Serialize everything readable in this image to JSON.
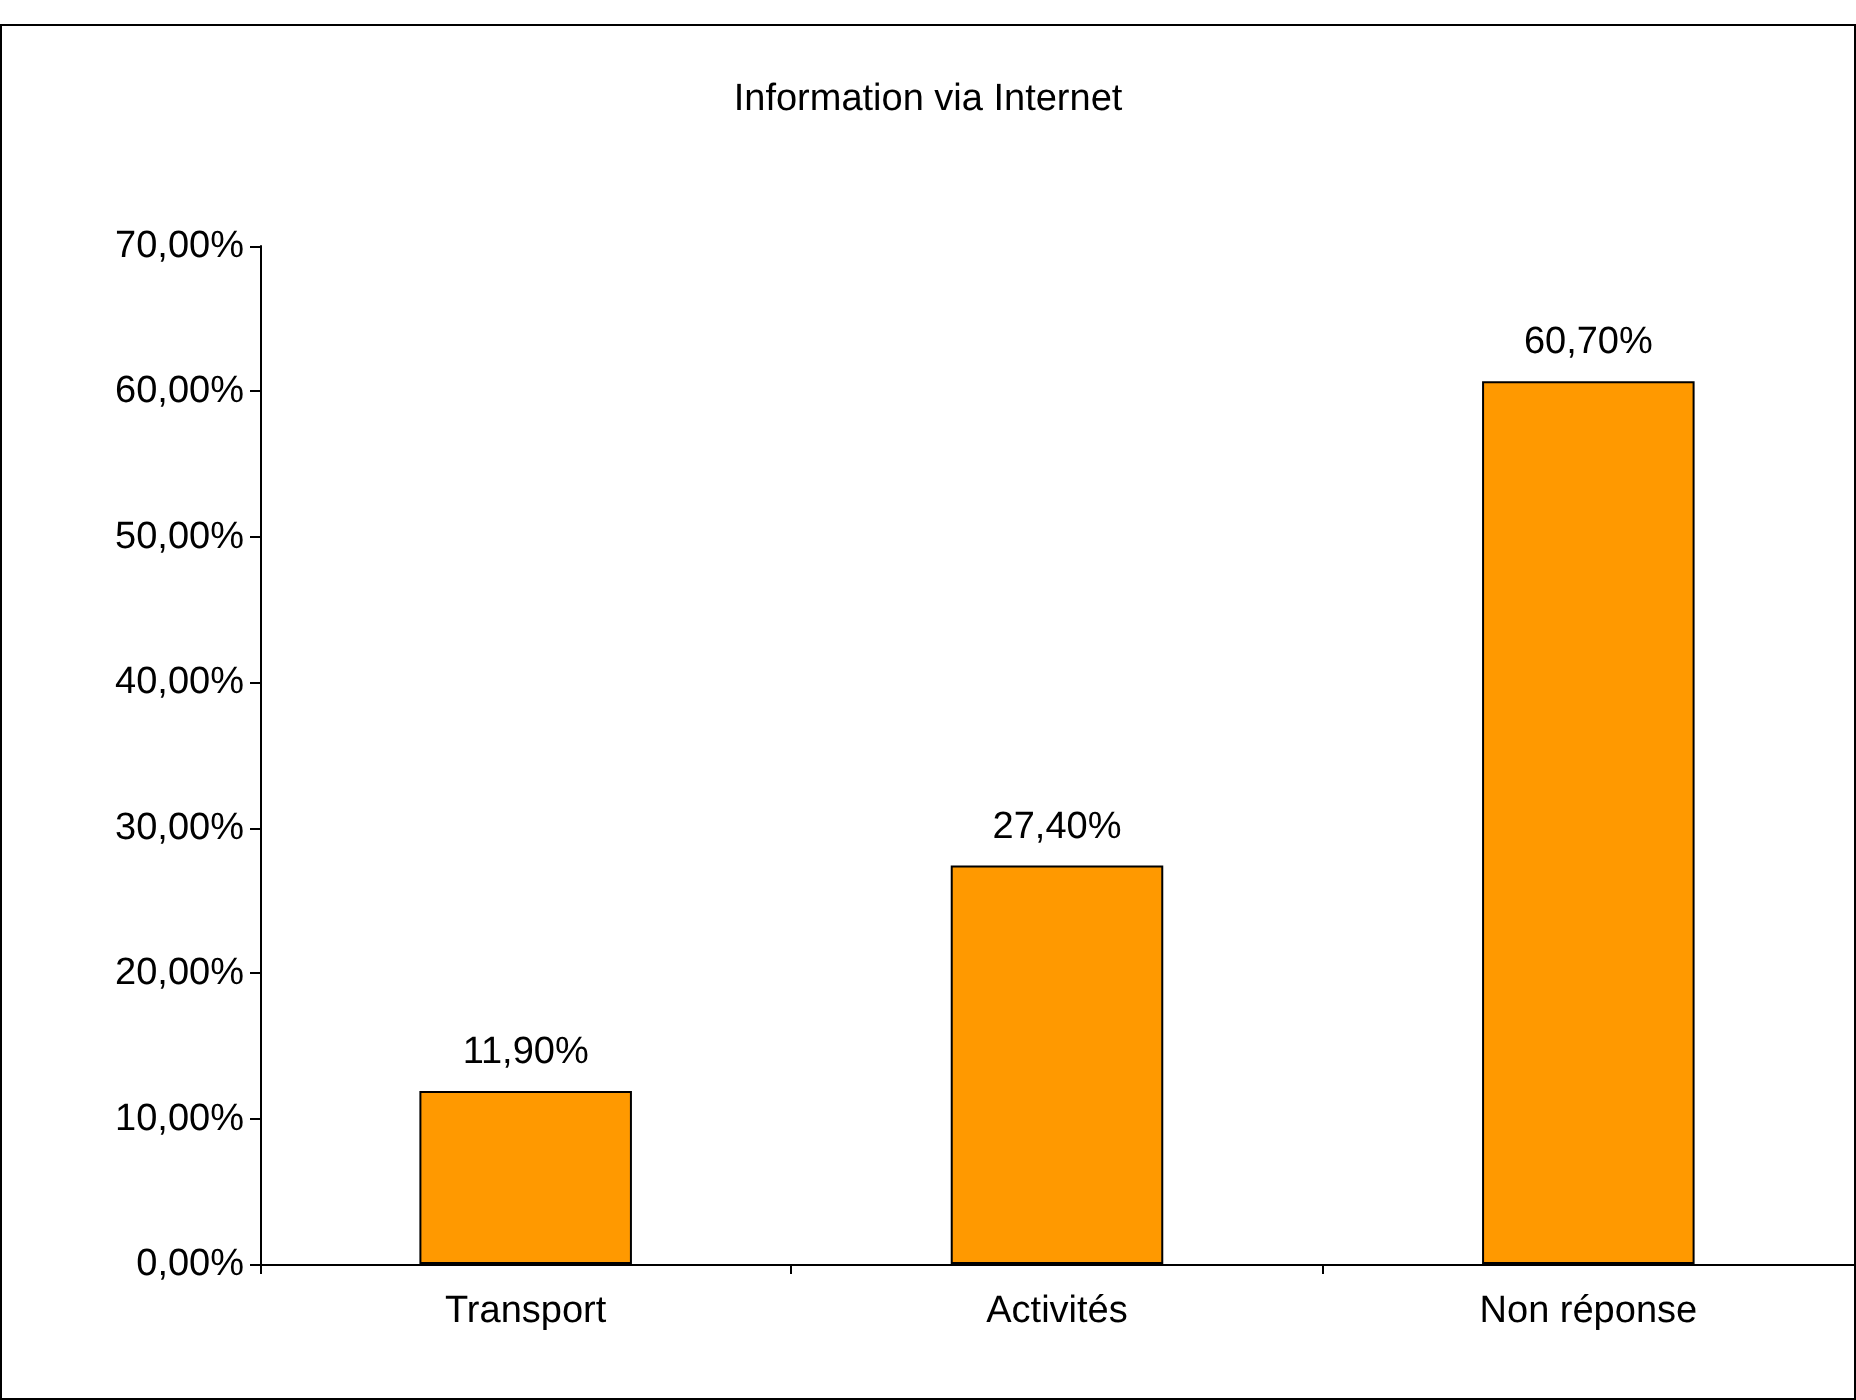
{
  "chart_data": {
    "type": "bar",
    "title": "Information via Internet",
    "categories": [
      "Transport",
      "Activités",
      "Non réponse"
    ],
    "values": [
      11.9,
      27.4,
      60.7
    ],
    "value_labels": [
      "11,90%",
      "27,40%",
      "60,70%"
    ],
    "color": "#ff9900",
    "ylim": [
      0,
      70
    ],
    "yticks": [
      {
        "value": 0,
        "label": "0,00%"
      },
      {
        "value": 10,
        "label": "10,00%"
      },
      {
        "value": 20,
        "label": "20,00%"
      },
      {
        "value": 30,
        "label": "30,00%"
      },
      {
        "value": 40,
        "label": "40,00%"
      },
      {
        "value": 50,
        "label": "50,00%"
      },
      {
        "value": 60,
        "label": "60,00%"
      },
      {
        "value": 70,
        "label": "70,00%"
      }
    ],
    "ylabel": null
  }
}
